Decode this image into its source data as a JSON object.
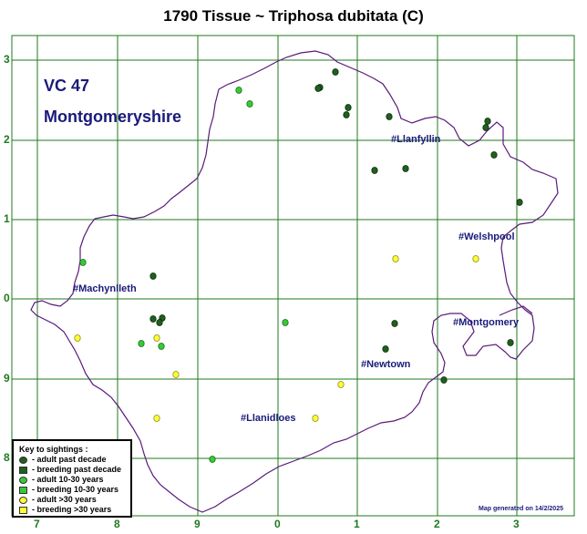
{
  "title": "1790 Tissue ~ Triphosa dubitata (C)",
  "vc_number": "VC 47",
  "vc_name": "Montgomeryshire",
  "towns": [
    "#Llanfyllin",
    "#Welshpool",
    "#Machynlleth",
    "#Montgomery",
    "#Newtown",
    "#Llanidloes"
  ],
  "grid_labels": {
    "left": [
      "3",
      "2",
      "1",
      "0",
      "9",
      "8"
    ],
    "bottom": [
      "7",
      "8",
      "9",
      "0",
      "1",
      "2",
      "3"
    ]
  },
  "legend": {
    "title": "Key to sightings :",
    "items": [
      {
        "label": "- adult past decade",
        "shape": "circle",
        "color": "#1f5f1f"
      },
      {
        "label": "- breeding past decade",
        "shape": "square",
        "color": "#1f5f1f"
      },
      {
        "label": "- adult 10-30 years",
        "shape": "circle",
        "color": "#33cc33"
      },
      {
        "label": "- breeding 10-30 years",
        "shape": "square",
        "color": "#33cc33"
      },
      {
        "label": "- adult >30 years",
        "shape": "circle",
        "color": "#ffff33"
      },
      {
        "label": "- breeding >30 years",
        "shape": "square",
        "color": "#ffff33"
      }
    ]
  },
  "footer": "Map generated on 14/2/2025",
  "colors": {
    "grid": "#1f7a1f",
    "boundary": "#5a1a7a",
    "adult_past_decade": "#1f5f1f",
    "adult_10_30": "#33cc33",
    "adult_over_30": "#ffff33"
  },
  "sightings": {
    "adult_past_decade_count": 22,
    "adult_10_30_years_count": 8,
    "adult_over_30_years_count": 9
  }
}
